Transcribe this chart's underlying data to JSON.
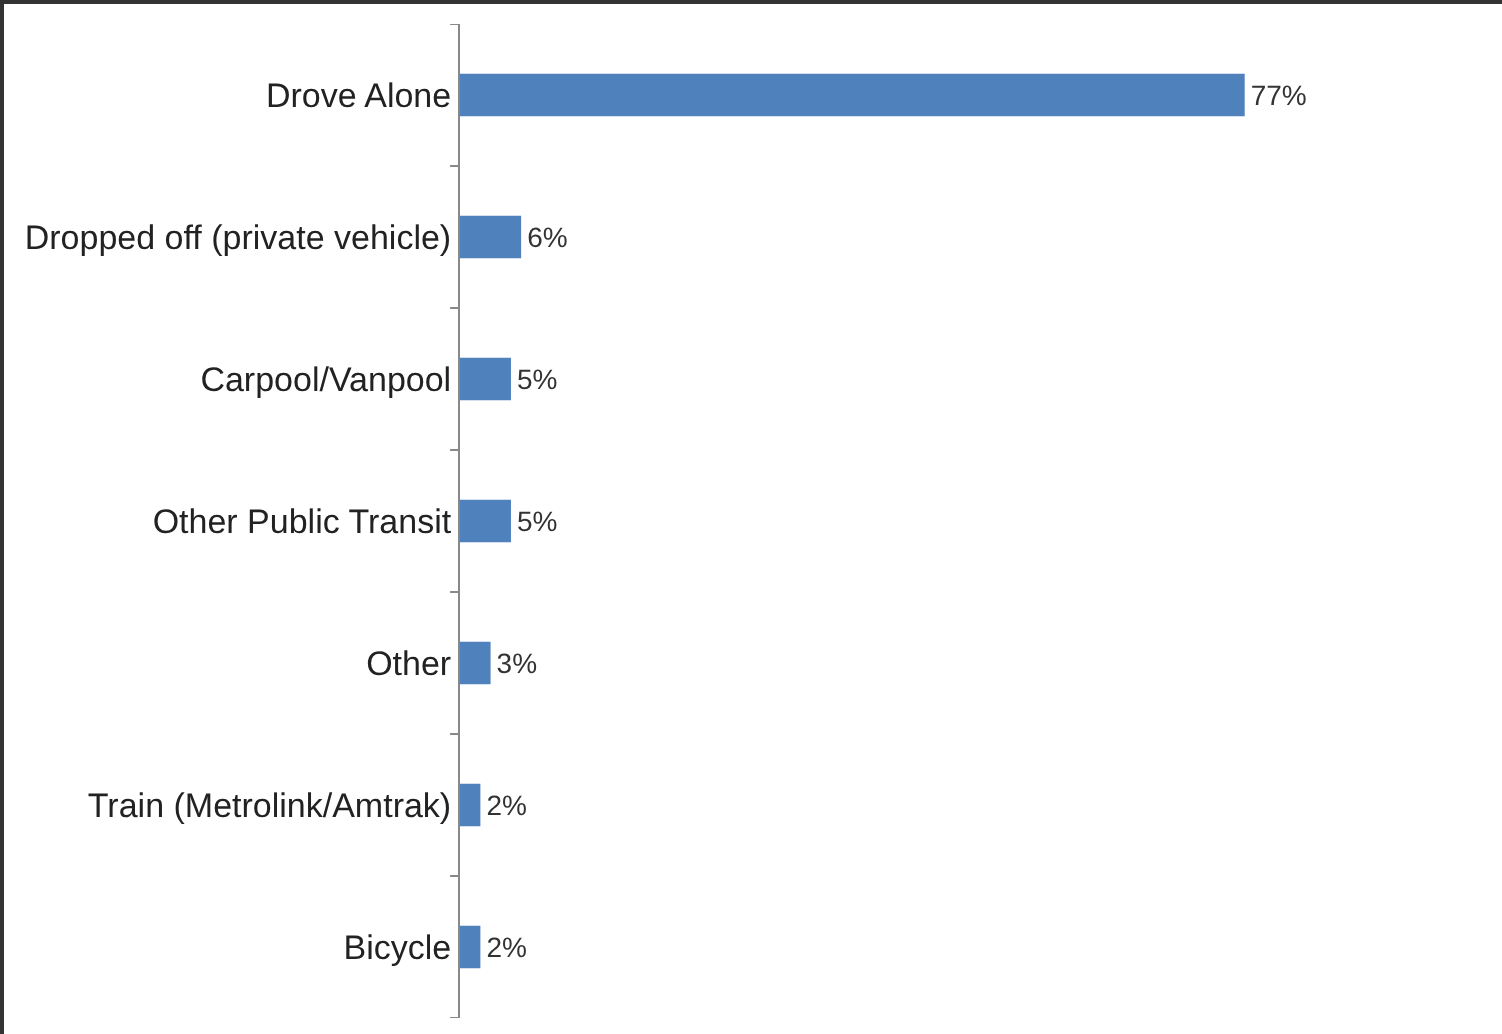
{
  "chart_data": {
    "type": "bar",
    "orientation": "horizontal",
    "categories": [
      "Drove Alone",
      "Dropped off (private vehicle)",
      "Carpool/Vanpool",
      "Other Public Transit",
      "Other",
      "Train (Metrolink/Amtrak)",
      "Bicycle"
    ],
    "values": [
      77,
      6,
      5,
      5,
      3,
      2,
      2
    ],
    "value_labels": [
      "77%",
      "6%",
      "5%",
      "5%",
      "3%",
      "2%",
      "2%"
    ],
    "color": "#4f81bd",
    "tick_labels": "y",
    "grid": false,
    "legend": false
  }
}
